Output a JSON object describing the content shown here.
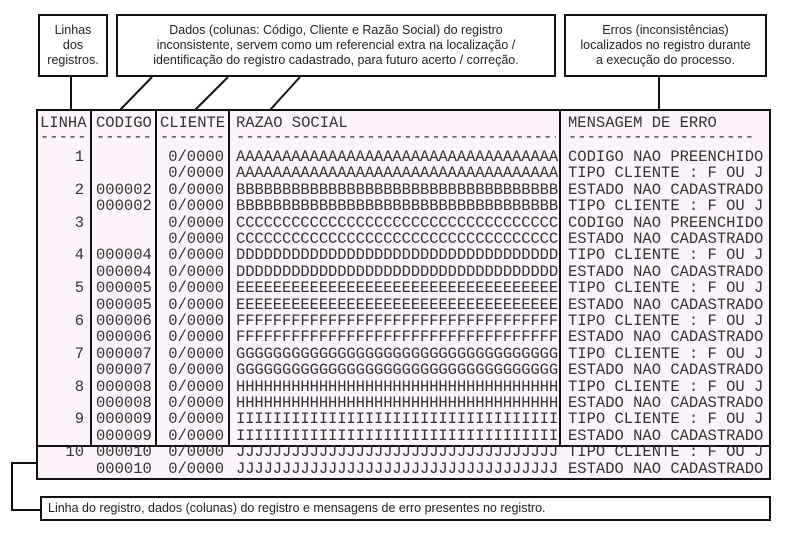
{
  "callouts": {
    "linhas": [
      "Linhas",
      "dos",
      "registros."
    ],
    "dados": [
      "Dados (colunas: Código, Cliente e Razão Social) do registro",
      "inconsistente, servem como um referencial extra na localização /",
      "identificação do registro cadastrado, para futuro acerto / correção."
    ],
    "erros": [
      "Erros (inconsistências)",
      "localizados no registro durante",
      "a execução do processo."
    ],
    "bottom": "Linha do registro, dados (colunas) do registro e mensagens de erro presentes no registro."
  },
  "table": {
    "headers": {
      "linha": "LINHA",
      "codigo": "CODIGO",
      "cliente": "CLIENTE",
      "razao": "RAZAO SOCIAL",
      "mensagem": "MENSAGEM DE ERRO"
    },
    "underlines": {
      "linha": "-----",
      "codigo": "------",
      "cliente": "-------",
      "razao": "-----------------------------------",
      "mensagem": "--------------------"
    },
    "rows": [
      {
        "linha": "1",
        "codigo": "",
        "cliente": "0/0000",
        "razao": "AAAAAAAAAAAAAAAAAAAAAAAAAAAAAAAAAAA",
        "erro": "CODIGO NAO PREENCHIDO"
      },
      {
        "linha": "",
        "codigo": "",
        "cliente": "0/0000",
        "razao": "AAAAAAAAAAAAAAAAAAAAAAAAAAAAAAAAAAA",
        "erro": "TIPO CLIENTE : F OU J"
      },
      {
        "linha": "2",
        "codigo": "000002",
        "cliente": "0/0000",
        "razao": "BBBBBBBBBBBBBBBBBBBBBBBBBBBBBBBBBBB",
        "erro": "ESTADO NAO CADASTRADO"
      },
      {
        "linha": "",
        "codigo": "000002",
        "cliente": "0/0000",
        "razao": "BBBBBBBBBBBBBBBBBBBBBBBBBBBBBBBBBBB",
        "erro": "TIPO CLIENTE : F OU J"
      },
      {
        "linha": "3",
        "codigo": "",
        "cliente": "0/0000",
        "razao": "CCCCCCCCCCCCCCCCCCCCCCCCCCCCCCCCCCC",
        "erro": "CODIGO NAO PREENCHIDO"
      },
      {
        "linha": "",
        "codigo": "",
        "cliente": "0/0000",
        "razao": "CCCCCCCCCCCCCCCCCCCCCCCCCCCCCCCCCCC",
        "erro": "ESTADO NAO CADASTRADO"
      },
      {
        "linha": "4",
        "codigo": "000004",
        "cliente": "0/0000",
        "razao": "DDDDDDDDDDDDDDDDDDDDDDDDDDDDDDDDDDD",
        "erro": "TIPO CLIENTE : F OU J"
      },
      {
        "linha": "",
        "codigo": "000004",
        "cliente": "0/0000",
        "razao": "DDDDDDDDDDDDDDDDDDDDDDDDDDDDDDDDDDD",
        "erro": "ESTADO NAO CADASTRADO"
      },
      {
        "linha": "5",
        "codigo": "000005",
        "cliente": "0/0000",
        "razao": "EEEEEEEEEEEEEEEEEEEEEEEEEEEEEEEEEEE",
        "erro": "TIPO CLIENTE : F OU J"
      },
      {
        "linha": "",
        "codigo": "000005",
        "cliente": "0/0000",
        "razao": "EEEEEEEEEEEEEEEEEEEEEEEEEEEEEEEEEEE",
        "erro": "ESTADO NAO CADASTRADO"
      },
      {
        "linha": "6",
        "codigo": "000006",
        "cliente": "0/0000",
        "razao": "FFFFFFFFFFFFFFFFFFFFFFFFFFFFFFFFFFF",
        "erro": "TIPO CLIENTE : F OU J"
      },
      {
        "linha": "",
        "codigo": "000006",
        "cliente": "0/0000",
        "razao": "FFFFFFFFFFFFFFFFFFFFFFFFFFFFFFFFFFF",
        "erro": "ESTADO NAO CADASTRADO"
      },
      {
        "linha": "7",
        "codigo": "000007",
        "cliente": "0/0000",
        "razao": "GGGGGGGGGGGGGGGGGGGGGGGGGGGGGGGGGGG",
        "erro": "TIPO CLIENTE : F OU J"
      },
      {
        "linha": "",
        "codigo": "000007",
        "cliente": "0/0000",
        "razao": "GGGGGGGGGGGGGGGGGGGGGGGGGGGGGGGGGGG",
        "erro": "ESTADO NAO CADASTRADO"
      },
      {
        "linha": "8",
        "codigo": "000008",
        "cliente": "0/0000",
        "razao": "HHHHHHHHHHHHHHHHHHHHHHHHHHHHHHHHHHH",
        "erro": "TIPO CLIENTE : F OU J"
      },
      {
        "linha": "",
        "codigo": "000008",
        "cliente": "0/0000",
        "razao": "HHHHHHHHHHHHHHHHHHHHHHHHHHHHHHHHHHH",
        "erro": "ESTADO NAO CADASTRADO"
      },
      {
        "linha": "9",
        "codigo": "000009",
        "cliente": "0/0000",
        "razao": "IIIIIIIIIIIIIIIIIIIIIIIIIIIIIIIIIII",
        "erro": "TIPO CLIENTE : F OU J"
      },
      {
        "linha": "",
        "codigo": "000009",
        "cliente": "0/0000",
        "razao": "IIIIIIIIIIIIIIIIIIIIIIIIIIIIIIIIIII",
        "erro": "ESTADO NAO CADASTRADO"
      },
      {
        "linha": "10",
        "codigo": "000010",
        "cliente": "0/0000",
        "razao": "JJJJJJJJJJJJJJJJJJJJJJJJJJJJJJJJJJJ",
        "erro": "TIPO CLIENTE : F OU J"
      },
      {
        "linha": "",
        "codigo": "000010",
        "cliente": "0/0000",
        "razao": "JJJJJJJJJJJJJJJJJJJJJJJJJJJJJJJJJJJ",
        "erro": "ESTADO NAO CADASTRADO"
      }
    ]
  }
}
